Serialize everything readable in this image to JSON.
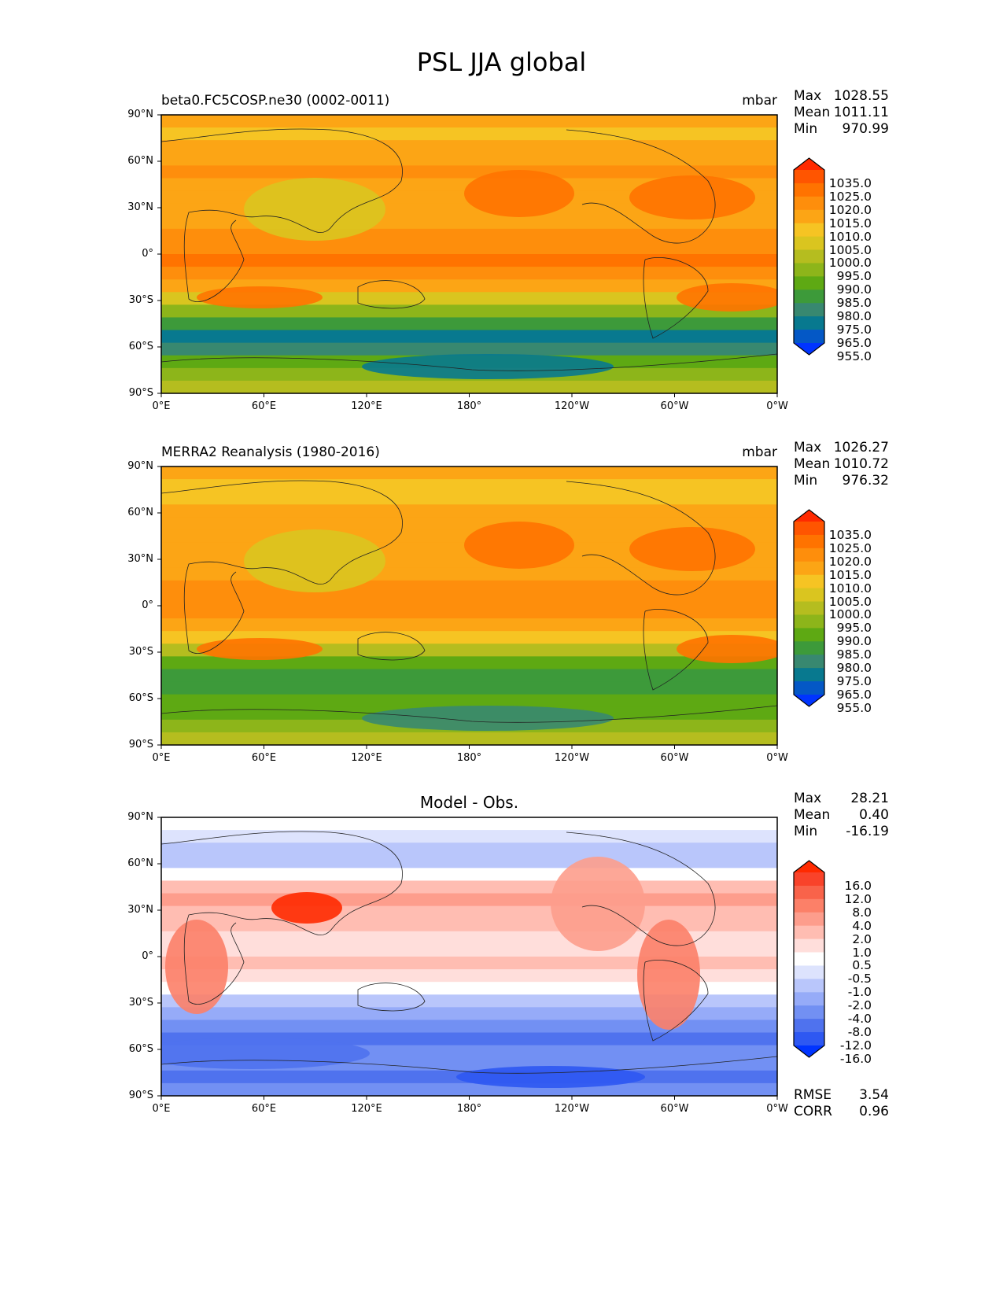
{
  "title": "PSL JJA global",
  "lat_ticks": [
    "90°N",
    "60°N",
    "30°N",
    "0°",
    "30°S",
    "60°S",
    "90°S"
  ],
  "lon_ticks": [
    "0°E",
    "60°E",
    "120°E",
    "180°",
    "120°W",
    "60°W",
    "0°W"
  ],
  "panels": [
    {
      "left_title": "beta0.FC5COSP.ne30 (0002-0011)",
      "center_title": "",
      "units": "mbar",
      "stats": {
        "max_label": "Max",
        "max": "1028.55",
        "mean_label": "Mean",
        "mean": "1011.11",
        "min_label": "Min",
        "min": "970.99"
      },
      "colorbar": "abs"
    },
    {
      "left_title": "MERRA2 Reanalysis (1980-2016)",
      "center_title": "",
      "units": "mbar",
      "stats": {
        "max_label": "Max",
        "max": "1026.27",
        "mean_label": "Mean",
        "mean": "1010.72",
        "min_label": "Min",
        "min": "976.32"
      },
      "colorbar": "abs"
    },
    {
      "left_title": "",
      "center_title": "Model - Obs.",
      "units": "",
      "stats": {
        "max_label": "Max",
        "max": "28.21",
        "mean_label": "Mean",
        "mean": "0.40",
        "min_label": "Min",
        "min": "-16.19"
      },
      "colorbar": "diff",
      "extra": {
        "rmse_label": "RMSE",
        "rmse": "3.54",
        "corr_label": "CORR",
        "corr": "0.96"
      }
    }
  ],
  "colorbars": {
    "abs": {
      "levels": [
        "1035.0",
        "1025.0",
        "1020.0",
        "1015.0",
        "1010.0",
        "1005.0",
        "1000.0",
        "995.0",
        "990.0",
        "985.0",
        "980.0",
        "975.0",
        "965.0",
        "955.0"
      ],
      "colors": [
        "#ff2a00",
        "#ff5500",
        "#ff7300",
        "#fe8e0c",
        "#fca515",
        "#f6c423",
        "#dac51f",
        "#b5bd1f",
        "#8db51a",
        "#5ea913",
        "#3d9a3a",
        "#388870",
        "#08798f",
        "#0458c6",
        "#0034ff"
      ]
    },
    "diff": {
      "levels": [
        "16.0",
        "12.0",
        "8.0",
        "4.0",
        "2.0",
        "1.0",
        "0.5",
        "-0.5",
        "-1.0",
        "-2.0",
        "-4.0",
        "-8.0",
        "-12.0",
        "-16.0"
      ],
      "colors": [
        "#ff2a00",
        "#f9432a",
        "#f9634a",
        "#fc8068",
        "#fd9d8c",
        "#ffbdb2",
        "#ffdedb",
        "#ffffff",
        "#dde3fd",
        "#b9c6fb",
        "#96abf8",
        "#7290f3",
        "#4f72ee",
        "#2e58f2",
        "#0034ff"
      ]
    }
  }
}
